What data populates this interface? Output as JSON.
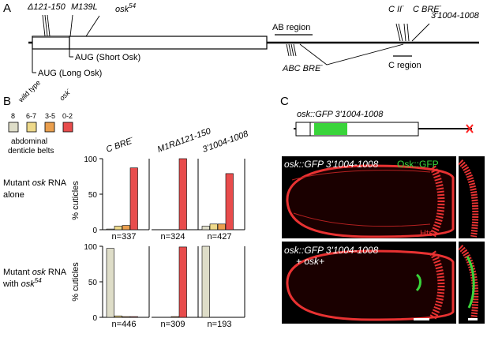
{
  "panels": {
    "a": "A",
    "b": "B",
    "c": "C"
  },
  "panel_a": {
    "top_labels": {
      "del121_150": "Δ121-150",
      "m139l": "M139L",
      "osk54_base": "osk",
      "osk54_sup": "54",
      "c_ii_base": "C II",
      "c_ii_sup": "-",
      "c_bre_base": "C BRE",
      "c_bre_sup": "-",
      "r3_1004_1008": "3'1004-1008"
    },
    "ab_region": "AB region",
    "abc_bre_base": "ABC BRE",
    "abc_bre_sup": "-",
    "c_region": "C region",
    "aug_short": "AUG (Short Osk)",
    "aug_long": "AUG (Long Osk)"
  },
  "panel_b": {
    "legend": {
      "categories": [
        {
          "rotated_label": "wild type",
          "count": "8",
          "color": "#deddc8"
        },
        {
          "rotated_label": "",
          "count": "6-7",
          "color": "#eed98a"
        },
        {
          "rotated_label": "",
          "count": "3-5",
          "color": "#ea9f4e"
        },
        {
          "rotated_label": "osk",
          "count": "0-2",
          "color": "#e84c4c"
        }
      ],
      "rotated_osk_sup": "-",
      "caption_line1": "abdominal",
      "caption_line2": "denticle belts"
    },
    "column_titles": [
      {
        "base": "C BRE",
        "sup": "-"
      },
      {
        "base": "M1RΔ121-150",
        "sup": ""
      },
      {
        "base": "3'1004-1008",
        "sup": ""
      }
    ],
    "row_titles": [
      {
        "line1_a": "Mutant ",
        "line1_b": "osk",
        "line1_c": " RNA",
        "line2_a": "alone",
        "line2_b": "",
        "line2_sup": ""
      },
      {
        "line1_a": "Mutant ",
        "line1_b": "osk",
        "line1_c": " RNA",
        "line2_a": "with ",
        "line2_b": "osk",
        "line2_sup": "54"
      }
    ],
    "ylabel": "% cuticles",
    "yticks": [
      "0",
      "50",
      "100"
    ]
  },
  "chart_data": {
    "type": "bar",
    "title": "",
    "ylabel": "% cuticles",
    "ylim": [
      0,
      100
    ],
    "categories": [
      "8",
      "6-7",
      "3-5",
      "0-2"
    ],
    "panels": [
      {
        "row": "Mutant osk RNA alone",
        "column": "C BRE-",
        "n_label": "n=337",
        "values": [
          1,
          5,
          6,
          87
        ]
      },
      {
        "row": "Mutant osk RNA alone",
        "column": "M1RΔ121-150",
        "n_label": "n=324",
        "values": [
          0,
          0,
          0,
          100
        ]
      },
      {
        "row": "Mutant osk RNA alone",
        "column": "3'1004-1008",
        "n_label": "n=427",
        "values": [
          5,
          8,
          8,
          79
        ]
      },
      {
        "row": "Mutant osk RNA with osk54",
        "column": "C BRE-",
        "n_label": "n=446",
        "values": [
          97,
          2,
          1,
          1
        ]
      },
      {
        "row": "Mutant osk RNA with osk54",
        "column": "M1RΔ121-150",
        "n_label": "n=309",
        "values": [
          0,
          0,
          1,
          99
        ]
      },
      {
        "row": "Mutant osk RNA with osk54",
        "column": "3'1004-1008",
        "n_label": "n=193",
        "values": [
          100,
          0,
          0,
          0
        ]
      }
    ]
  },
  "panel_c": {
    "construct_label": "osk::GFP 3'1004-1008",
    "micro_top_label": "osk::GFP 3'1004-1008",
    "micro_top_stain_green": "Osk::GFP",
    "micro_top_stain_red": "Hts",
    "micro_bottom_label": "osk::GFP 3'1004-1008",
    "micro_bottom_label2": "+ osk+",
    "colors": {
      "gfp_green": "#39d43a",
      "stain_red": "#e83232",
      "marker_red": "#ff2020"
    }
  }
}
